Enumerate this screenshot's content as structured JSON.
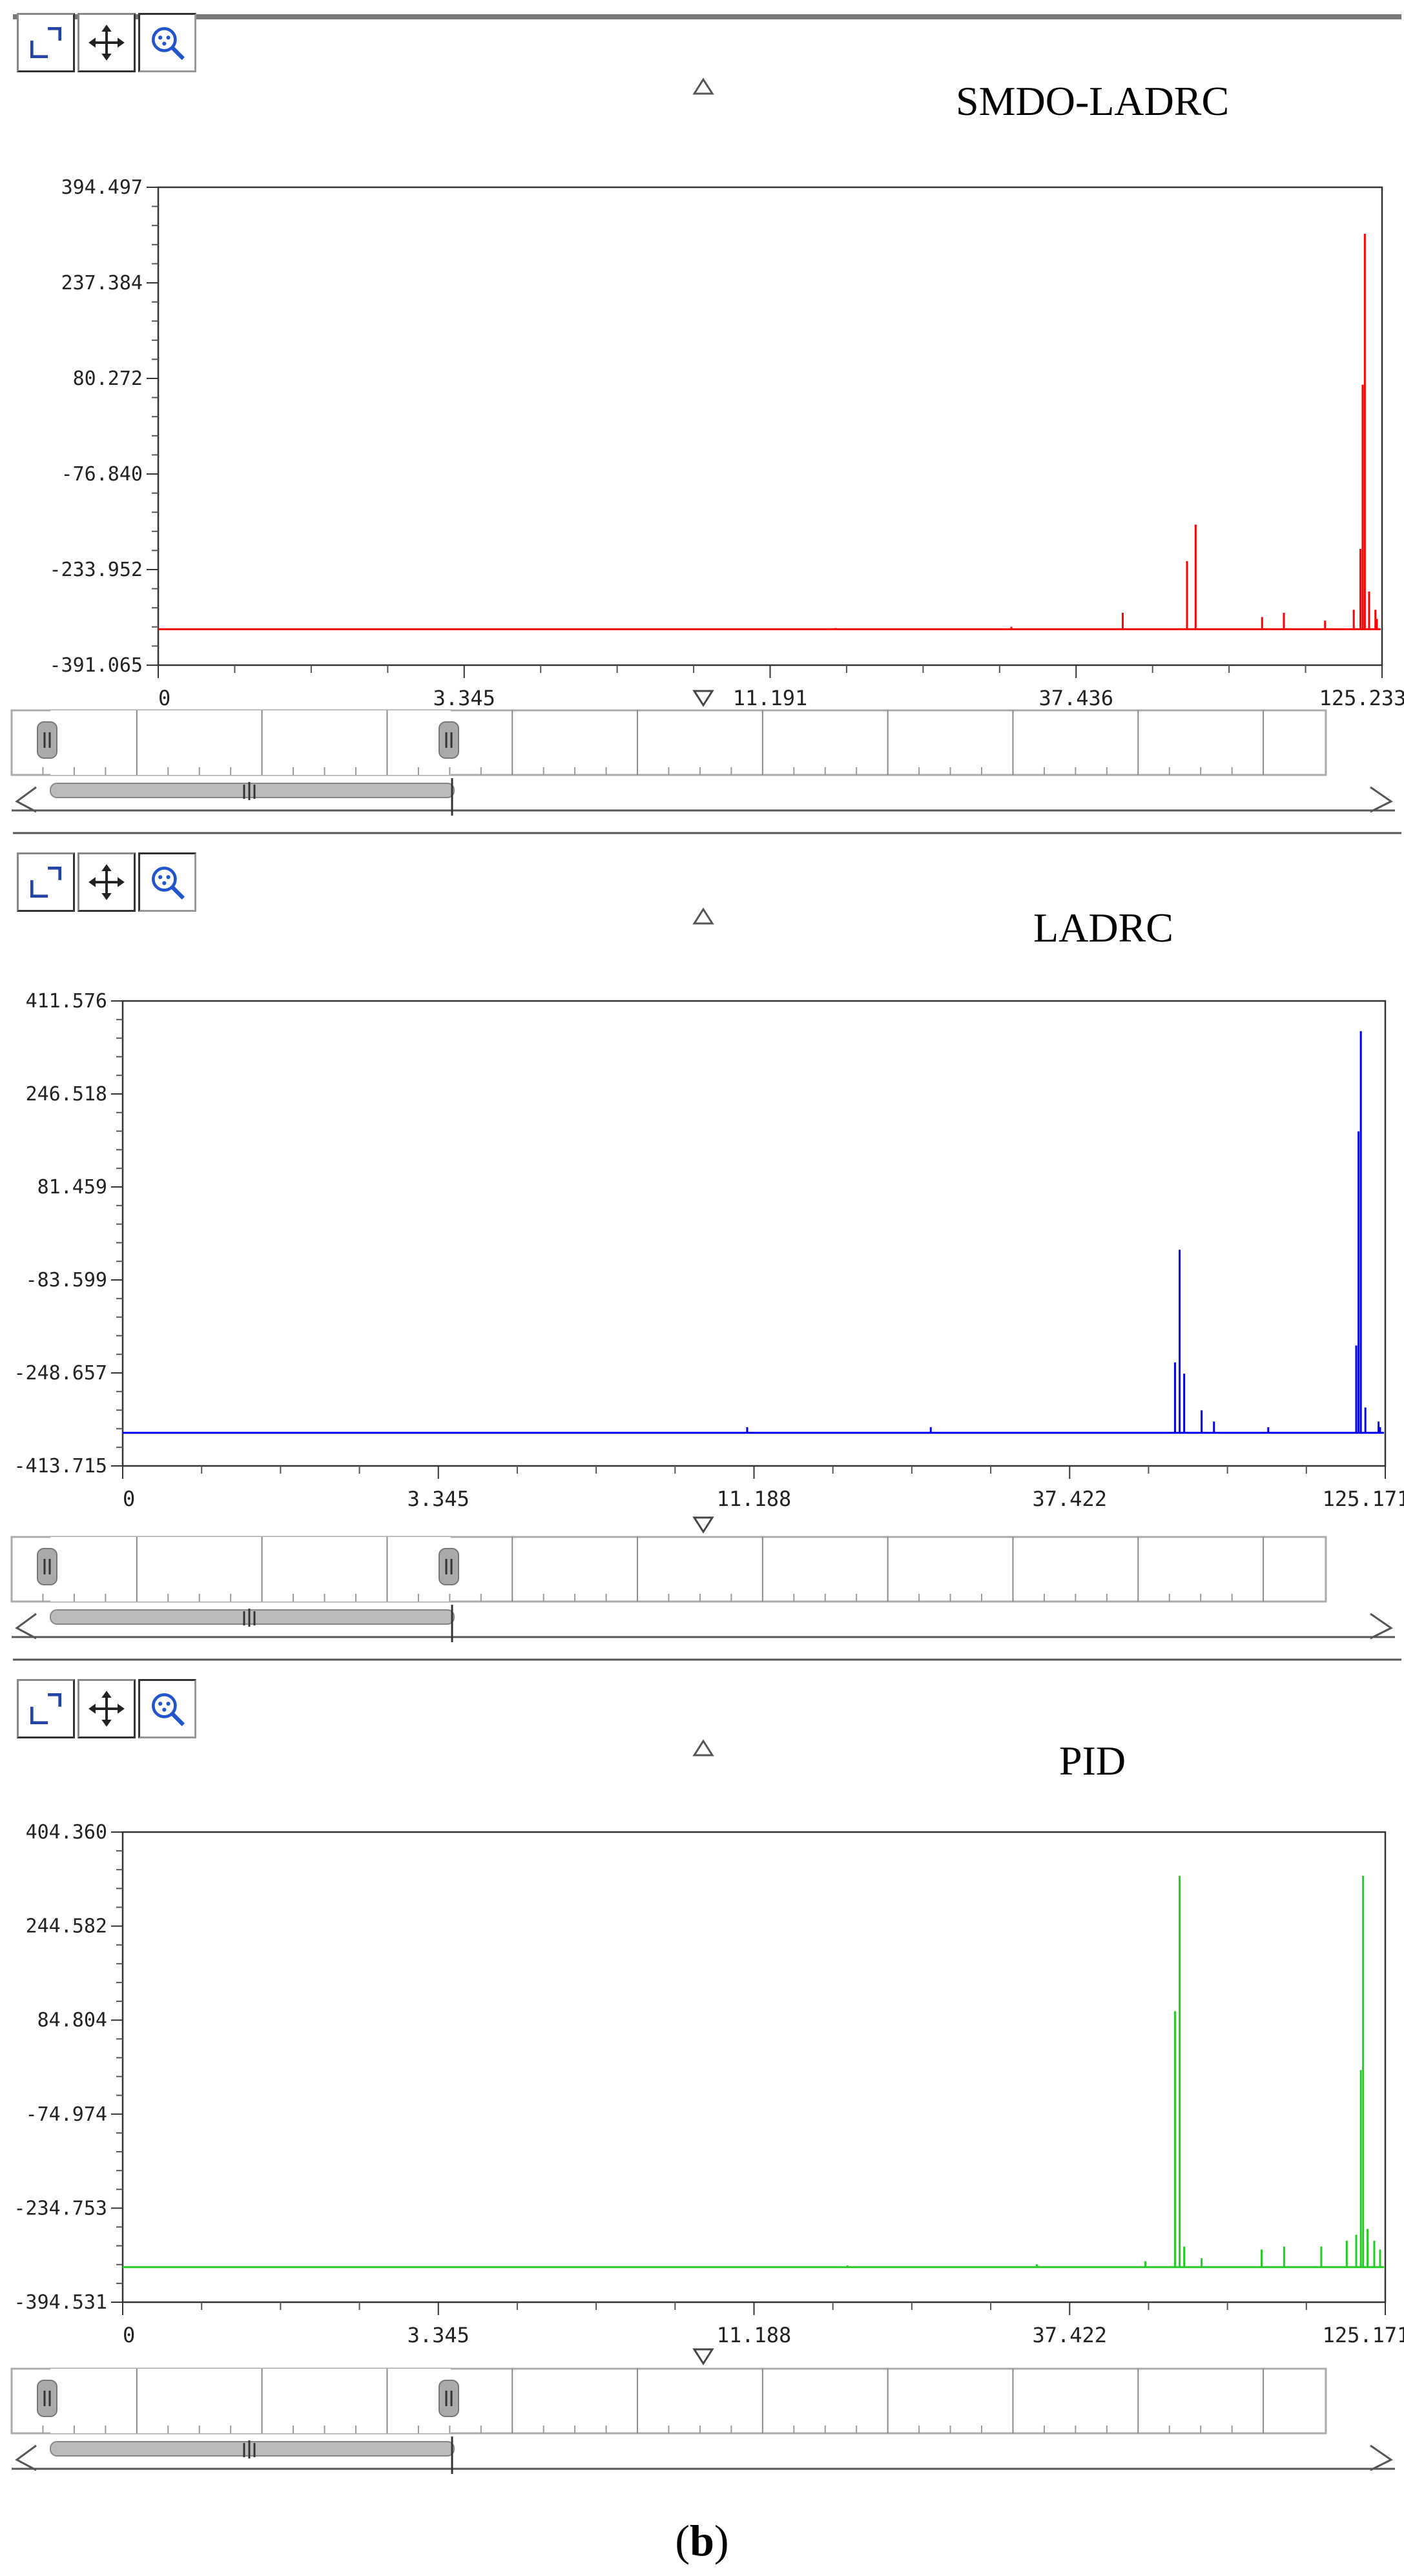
{
  "caption": {
    "open": "(",
    "letter": "b",
    "close": ")"
  },
  "toolbar_icons": [
    "fit-icon",
    "pan-icon",
    "zoom-icon"
  ],
  "chart_data": [
    {
      "type": "line",
      "title": "SMDO-LADRC",
      "color": "#ff0000",
      "ylim": [
        -391.065,
        394.497
      ],
      "y_ticks": [
        "394.497",
        "237.384",
        "80.272",
        "-76.840",
        "-233.952",
        "-391.065"
      ],
      "x_ticks": [
        "0",
        "3.345",
        "11.191",
        "37.436",
        "125.233"
      ],
      "x_scale": "log",
      "baseline": -332,
      "peaks": [
        {
          "x": 14.5,
          "y": -330
        },
        {
          "x": 29.0,
          "y": -328
        },
        {
          "x": 45.0,
          "y": -305
        },
        {
          "x": 58.0,
          "y": -220
        },
        {
          "x": 60.0,
          "y": -160
        },
        {
          "x": 78.0,
          "y": -312
        },
        {
          "x": 85.0,
          "y": -305
        },
        {
          "x": 100.0,
          "y": -318
        },
        {
          "x": 112.0,
          "y": -300
        },
        {
          "x": 115.0,
          "y": -200
        },
        {
          "x": 116.0,
          "y": 70
        },
        {
          "x": 117.0,
          "y": 318
        },
        {
          "x": 119.0,
          "y": -270
        },
        {
          "x": 122.0,
          "y": -300
        },
        {
          "x": 127.0,
          "y": -315
        }
      ]
    },
    {
      "type": "line",
      "title": "LADRC",
      "color": "#0000ee",
      "ylim": [
        -413.715,
        411.576
      ],
      "y_ticks": [
        "411.576",
        "246.518",
        "81.459",
        "-83.599",
        "-248.657",
        "-413.715"
      ],
      "x_ticks": [
        "0",
        "3.345",
        "11.188",
        "37.422",
        "125.171"
      ],
      "x_scale": "log",
      "baseline": -355,
      "peaks": [
        {
          "x": 10.9,
          "y": -345
        },
        {
          "x": 22.0,
          "y": -345
        },
        {
          "x": 56.0,
          "y": -230
        },
        {
          "x": 57.0,
          "y": -30
        },
        {
          "x": 58.0,
          "y": -250
        },
        {
          "x": 62.0,
          "y": -315
        },
        {
          "x": 65.0,
          "y": -335
        },
        {
          "x": 80.0,
          "y": -345
        },
        {
          "x": 112.0,
          "y": -200
        },
        {
          "x": 113.0,
          "y": 180
        },
        {
          "x": 114.0,
          "y": 358
        },
        {
          "x": 116.0,
          "y": -310
        },
        {
          "x": 122.0,
          "y": -335
        },
        {
          "x": 128.0,
          "y": -345
        }
      ]
    },
    {
      "type": "line",
      "title": "PID",
      "color": "#22cc22",
      "ylim": [
        -394.531,
        404.36
      ],
      "y_ticks": [
        "404.360",
        "244.582",
        "84.804",
        "-74.974",
        "-234.753",
        "-394.531"
      ],
      "x_ticks": [
        "0",
        "3.345",
        "11.188",
        "37.422",
        "125.171"
      ],
      "x_scale": "log",
      "baseline": -335,
      "peaks": [
        {
          "x": 16.0,
          "y": -332
        },
        {
          "x": 33.0,
          "y": -330
        },
        {
          "x": 50.0,
          "y": -325
        },
        {
          "x": 56.0,
          "y": 100
        },
        {
          "x": 57.0,
          "y": 330
        },
        {
          "x": 58.0,
          "y": -300
        },
        {
          "x": 62.0,
          "y": -320
        },
        {
          "x": 78.0,
          "y": -305
        },
        {
          "x": 85.0,
          "y": -300
        },
        {
          "x": 98.0,
          "y": -300
        },
        {
          "x": 108.0,
          "y": -290
        },
        {
          "x": 112.0,
          "y": -280
        },
        {
          "x": 114.0,
          "y": 0
        },
        {
          "x": 115.0,
          "y": 330
        },
        {
          "x": 117.0,
          "y": -270
        },
        {
          "x": 120.0,
          "y": -290
        },
        {
          "x": 126.0,
          "y": -305
        }
      ]
    }
  ]
}
